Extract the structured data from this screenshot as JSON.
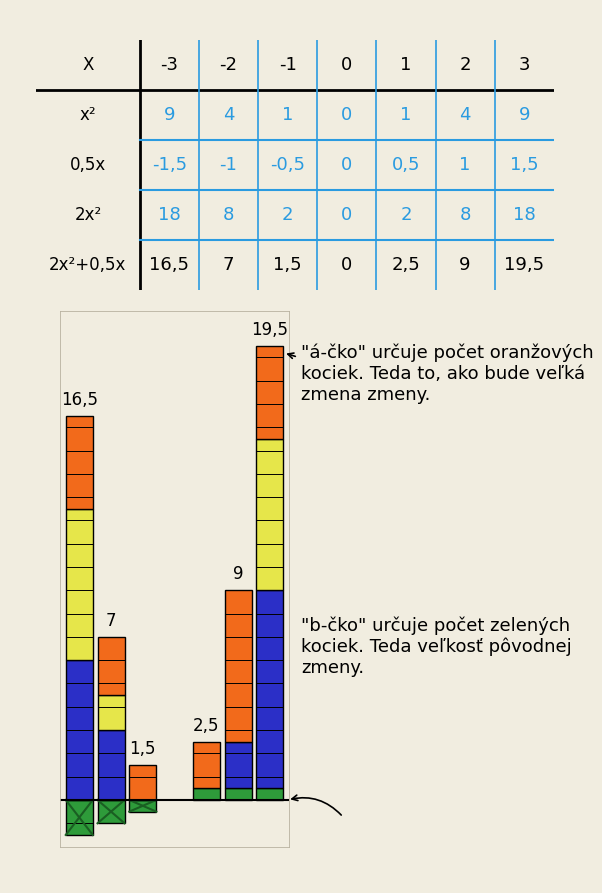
{
  "table": {
    "header": [
      "X",
      "-3",
      "-2",
      "-1",
      "0",
      "1",
      "2",
      "3"
    ],
    "rows": [
      [
        "x²",
        "9",
        "4",
        "1",
        "0",
        "1",
        "4",
        "9"
      ],
      [
        "0,5x",
        "-1,5",
        "-1",
        "-0,5",
        "0",
        "0,5",
        "1",
        "1,5"
      ],
      [
        "2x²",
        "18",
        "8",
        "2",
        "0",
        "2",
        "8",
        "18"
      ],
      [
        "2x²+0,5x",
        "16,5",
        "7",
        "1,5",
        "0",
        "2,5",
        "9",
        "19,5"
      ]
    ]
  },
  "chart_data": {
    "type": "bar",
    "stacked": true,
    "tick_labels": false,
    "data_labels": true,
    "x": [
      -3,
      -2,
      -1,
      1,
      2,
      3
    ],
    "xlim": [
      -3.6,
      3.6
    ],
    "ylim": [
      -2,
      21
    ],
    "series": [
      {
        "color": "#2e9b3a",
        "values": [
          -1.5,
          -1,
          -0.5,
          0.5,
          0.5,
          0.5
        ]
      },
      {
        "color": "#2b2fc7",
        "values": [
          6,
          3,
          0,
          0,
          2,
          8.5
        ]
      },
      {
        "color": "#e6e64a",
        "values": [
          6.5,
          1.5,
          0,
          0,
          0,
          6.5
        ]
      },
      {
        "color": "#f26a1b",
        "values": [
          4,
          2.5,
          1.5,
          2,
          6.5,
          4
        ]
      }
    ],
    "totals": {
      "values": [
        16.5,
        7,
        1.5,
        2.5,
        9,
        19.5
      ],
      "value_labels": [
        "16,5",
        "7",
        "1,5",
        "2,5",
        "9",
        "19,5"
      ]
    },
    "annotations": [
      "\"á-čko\" určuje počet oranžových kociek. Teda to, ako bude veľká zmena zmeny.",
      "\"b-čko\" určuje počet zelených kociek. Teda veľkosť pôvodnej zmeny."
    ]
  }
}
